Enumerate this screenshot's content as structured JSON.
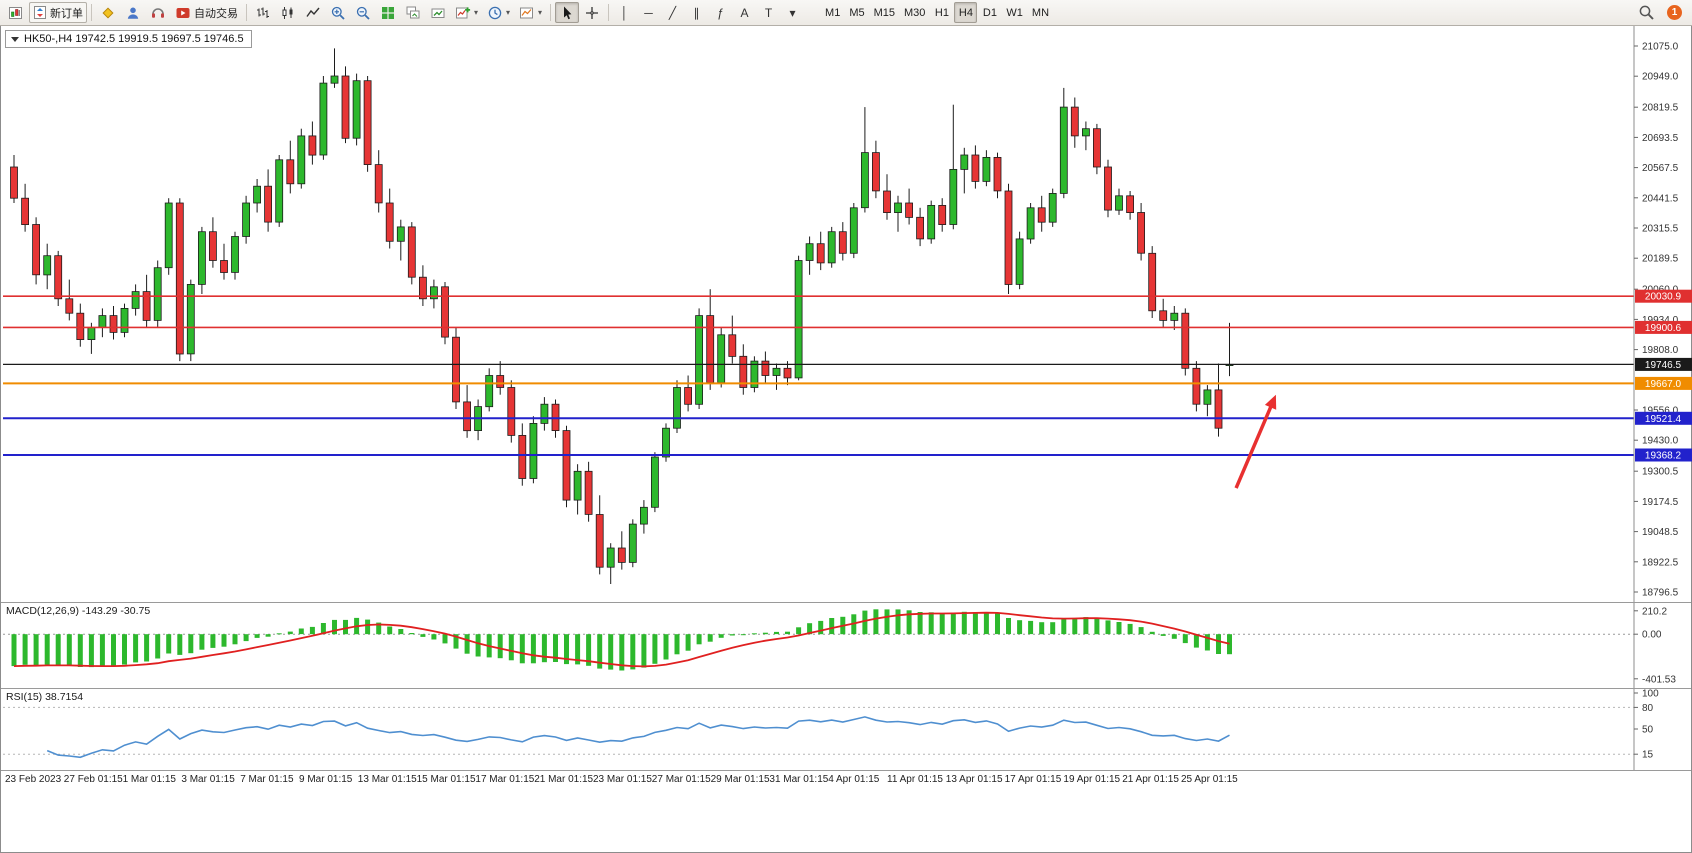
{
  "toolbar": {
    "buttons": {
      "new_order": "新订单",
      "auto_trading": "自动交易"
    },
    "glyphs": {
      "vline": "│",
      "hline": "─",
      "trend": "╱",
      "channel": "∥",
      "fibo": "ƒ",
      "text": "A",
      "label": "T",
      "caret": "▾"
    },
    "timeframes": [
      "M1",
      "M5",
      "M15",
      "M30",
      "H1",
      "H4",
      "D1",
      "W1",
      "MN"
    ],
    "active_timeframe": "H4",
    "notification_count": "1"
  },
  "chart": {
    "title": "HK50-,H4  19742.5 19919.5 19697.5 19746.5"
  },
  "panels": {
    "macd_label": "MACD(12,26,9) -143.29 -30.75",
    "rsi_label": "RSI(15) 38.7154"
  },
  "chart_data": {
    "type": "candlestick",
    "symbol": "HK50-",
    "timeframe": "H4",
    "last_quote": {
      "open": 19742.5,
      "high": 19919.5,
      "low": 19697.5,
      "close": 19746.5
    },
    "price_top": 21075.0,
    "price_bottom": 18796.5,
    "colors": {
      "up": "#2db82d",
      "down": "#e63535",
      "outline": "#1c1c1c"
    },
    "y_axis_labels": [
      "21075.0",
      "20949.0",
      "20819.5",
      "20693.5",
      "20567.5",
      "20441.5",
      "20315.5",
      "20189.5",
      "20060.0",
      "19934.0",
      "19808.0",
      "19556.0",
      "19430.0",
      "19300.5",
      "19174.5",
      "19048.5",
      "18922.5",
      "18796.5"
    ],
    "x_labels": [
      "23 Feb 2023",
      "27 Feb 01:15",
      "1 Mar 01:15",
      "3 Mar 01:15",
      "7 Mar 01:15",
      "9 Mar 01:15",
      "13 Mar 01:15",
      "15 Mar 01:15",
      "17 Mar 01:15",
      "21 Mar 01:15",
      "23 Mar 01:15",
      "27 Mar 01:15",
      "29 Mar 01:15",
      "31 Mar 01:15",
      "4 Apr 01:15",
      "11 Apr 01:15",
      "13 Apr 01:15",
      "17 Apr 01:15",
      "19 Apr 01:15",
      "21 Apr 01:15",
      "25 Apr 01:15"
    ],
    "candles": [
      [
        20570,
        20620,
        20420,
        20440
      ],
      [
        20440,
        20500,
        20300,
        20330
      ],
      [
        20330,
        20360,
        20080,
        20120
      ],
      [
        20120,
        20250,
        20060,
        20200
      ],
      [
        20200,
        20220,
        19990,
        20020
      ],
      [
        20020,
        20100,
        19930,
        19960
      ],
      [
        19960,
        20000,
        19820,
        19850
      ],
      [
        19850,
        19920,
        19790,
        19900
      ],
      [
        19900,
        19980,
        19860,
        19950
      ],
      [
        19950,
        19990,
        19850,
        19880
      ],
      [
        19880,
        20000,
        19860,
        19980
      ],
      [
        19980,
        20080,
        19950,
        20050
      ],
      [
        20050,
        20120,
        19900,
        19930
      ],
      [
        19930,
        20180,
        19900,
        20150
      ],
      [
        20150,
        20440,
        20120,
        20420
      ],
      [
        20420,
        20440,
        19760,
        19790
      ],
      [
        19790,
        20100,
        19760,
        20080
      ],
      [
        20080,
        20320,
        20040,
        20300
      ],
      [
        20300,
        20360,
        20150,
        20180
      ],
      [
        20180,
        20250,
        20100,
        20130
      ],
      [
        20130,
        20300,
        20100,
        20280
      ],
      [
        20280,
        20450,
        20250,
        20420
      ],
      [
        20420,
        20520,
        20380,
        20490
      ],
      [
        20490,
        20560,
        20300,
        20340
      ],
      [
        20340,
        20620,
        20320,
        20600
      ],
      [
        20600,
        20680,
        20460,
        20500
      ],
      [
        20500,
        20730,
        20480,
        20700
      ],
      [
        20700,
        20760,
        20580,
        20620
      ],
      [
        20620,
        20950,
        20600,
        20920
      ],
      [
        20920,
        21065,
        20900,
        20950
      ],
      [
        20950,
        20990,
        20670,
        20690
      ],
      [
        20690,
        20960,
        20660,
        20930
      ],
      [
        20930,
        20950,
        20550,
        20580
      ],
      [
        20580,
        20640,
        20380,
        20420
      ],
      [
        20420,
        20480,
        20230,
        20260
      ],
      [
        20260,
        20350,
        20180,
        20320
      ],
      [
        20320,
        20340,
        20080,
        20110
      ],
      [
        20110,
        20160,
        19990,
        20020
      ],
      [
        20020,
        20100,
        19980,
        20070
      ],
      [
        20070,
        20090,
        19830,
        19860
      ],
      [
        19860,
        19900,
        19560,
        19590
      ],
      [
        19590,
        19660,
        19440,
        19470
      ],
      [
        19470,
        19600,
        19430,
        19570
      ],
      [
        19570,
        19730,
        19550,
        19700
      ],
      [
        19700,
        19760,
        19620,
        19650
      ],
      [
        19650,
        19680,
        19420,
        19450
      ],
      [
        19450,
        19500,
        19240,
        19270
      ],
      [
        19270,
        19530,
        19250,
        19500
      ],
      [
        19500,
        19610,
        19470,
        19580
      ],
      [
        19580,
        19600,
        19440,
        19470
      ],
      [
        19470,
        19490,
        19150,
        19180
      ],
      [
        19180,
        19330,
        19120,
        19300
      ],
      [
        19300,
        19340,
        19090,
        19120
      ],
      [
        19120,
        19200,
        18870,
        18900
      ],
      [
        18900,
        19000,
        18830,
        18980
      ],
      [
        18980,
        19050,
        18890,
        18920
      ],
      [
        18920,
        19100,
        18900,
        19080
      ],
      [
        19080,
        19180,
        19040,
        19150
      ],
      [
        19150,
        19380,
        19130,
        19360
      ],
      [
        19360,
        19500,
        19340,
        19480
      ],
      [
        19480,
        19680,
        19460,
        19650
      ],
      [
        19650,
        19700,
        19550,
        19580
      ],
      [
        19580,
        19980,
        19560,
        19950
      ],
      [
        19950,
        20060,
        19640,
        19670
      ],
      [
        19670,
        19900,
        19650,
        19870
      ],
      [
        19870,
        19950,
        19750,
        19780
      ],
      [
        19780,
        19830,
        19620,
        19650
      ],
      [
        19650,
        19780,
        19630,
        19760
      ],
      [
        19760,
        19800,
        19670,
        19700
      ],
      [
        19700,
        19750,
        19640,
        19730
      ],
      [
        19730,
        19760,
        19660,
        19690
      ],
      [
        19690,
        20200,
        19680,
        20180
      ],
      [
        20180,
        20280,
        20120,
        20250
      ],
      [
        20250,
        20300,
        20140,
        20170
      ],
      [
        20170,
        20320,
        20150,
        20300
      ],
      [
        20300,
        20340,
        20180,
        20210
      ],
      [
        20210,
        20420,
        20190,
        20400
      ],
      [
        20400,
        20820,
        20380,
        20630
      ],
      [
        20630,
        20680,
        20440,
        20470
      ],
      [
        20470,
        20540,
        20350,
        20380
      ],
      [
        20380,
        20450,
        20300,
        20420
      ],
      [
        20420,
        20480,
        20330,
        20360
      ],
      [
        20360,
        20400,
        20240,
        20270
      ],
      [
        20270,
        20430,
        20250,
        20410
      ],
      [
        20410,
        20440,
        20300,
        20330
      ],
      [
        20330,
        20830,
        20310,
        20560
      ],
      [
        20560,
        20650,
        20460,
        20620
      ],
      [
        20620,
        20660,
        20480,
        20510
      ],
      [
        20510,
        20640,
        20490,
        20610
      ],
      [
        20610,
        20630,
        20440,
        20470
      ],
      [
        20470,
        20500,
        20040,
        20080
      ],
      [
        20080,
        20300,
        20060,
        20270
      ],
      [
        20270,
        20420,
        20250,
        20400
      ],
      [
        20400,
        20450,
        20300,
        20340
      ],
      [
        20340,
        20480,
        20320,
        20460
      ],
      [
        20460,
        20900,
        20440,
        20820
      ],
      [
        20820,
        20860,
        20650,
        20700
      ],
      [
        20700,
        20760,
        20640,
        20730
      ],
      [
        20730,
        20750,
        20540,
        20570
      ],
      [
        20570,
        20600,
        20360,
        20390
      ],
      [
        20390,
        20480,
        20370,
        20450
      ],
      [
        20450,
        20470,
        20350,
        20380
      ],
      [
        20380,
        20420,
        20180,
        20210
      ],
      [
        20210,
        20240,
        19940,
        19970
      ],
      [
        19970,
        20020,
        19900,
        19930
      ],
      [
        19930,
        19990,
        19890,
        19960
      ],
      [
        19960,
        19980,
        19700,
        19730
      ],
      [
        19730,
        19760,
        19550,
        19580
      ],
      [
        19580,
        19660,
        19530,
        19640
      ],
      [
        19640,
        19750,
        19445,
        19480
      ],
      [
        19742.5,
        19919.5,
        19697.5,
        19746.5
      ]
    ],
    "hlines": [
      {
        "price": 20030.9,
        "label": "20030.9",
        "color": "#e03030",
        "width": 1.6
      },
      {
        "price": 19900.6,
        "label": "19900.6",
        "color": "#e03030",
        "width": 1.6
      },
      {
        "price": 19746.5,
        "label": "19746.5",
        "color": "#1a1a1a",
        "width": 1.2
      },
      {
        "price": 19667.0,
        "label": "19667.0",
        "color": "#f08c00",
        "width": 2
      },
      {
        "price": 19521.4,
        "label": "19521.4",
        "color": "#2222cc",
        "width": 2
      },
      {
        "price": 19368.2,
        "label": "19368.2",
        "color": "#2222cc",
        "width": 2
      }
    ],
    "arrow_annotation": {
      "color": "#e83030",
      "from": {
        "bar": 110.6,
        "price": 19230
      },
      "to": {
        "bar": 114.2,
        "price": 19620
      }
    },
    "indicators": {
      "macd": {
        "params": [
          12,
          26,
          9
        ],
        "current": [
          -143.29,
          -30.75
        ],
        "axis": [
          {
            "label": "210.2",
            "value": 210.2
          },
          {
            "label": "0.00",
            "value": 0
          },
          {
            "label": "-401.53",
            "value": -401.53
          }
        ],
        "range": [
          -430,
          235
        ],
        "histogram_color": "#2db82d",
        "signal_color": "#e02020"
      },
      "rsi": {
        "params": [
          15
        ],
        "current": 38.7154,
        "axis": [
          {
            "label": "100",
            "value": 100
          },
          {
            "label": "80",
            "value": 80
          },
          {
            "label": "50",
            "value": 50
          },
          {
            "label": "15",
            "value": 15
          }
        ],
        "levels": [
          80,
          15
        ],
        "line_color": "#4f8fd0"
      }
    }
  }
}
